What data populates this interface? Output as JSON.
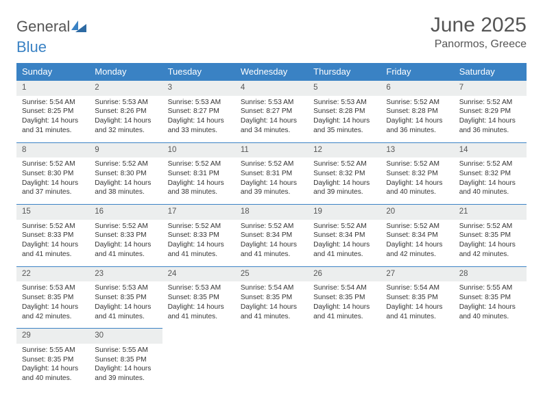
{
  "brand": {
    "word1": "General",
    "word2": "Blue"
  },
  "title": "June 2025",
  "location": "Panormos, Greece",
  "colors": {
    "header_bg": "#3a82c4",
    "header_text": "#ffffff",
    "daynum_bg": "#eceeee",
    "daynum_border": "#3a82c4",
    "body_text": "#333333",
    "title_text": "#555555"
  },
  "weekdays": [
    "Sunday",
    "Monday",
    "Tuesday",
    "Wednesday",
    "Thursday",
    "Friday",
    "Saturday"
  ],
  "weeks": [
    [
      {
        "n": "1",
        "sr": "5:54 AM",
        "ss": "8:25 PM",
        "dl": "14 hours and 31 minutes."
      },
      {
        "n": "2",
        "sr": "5:53 AM",
        "ss": "8:26 PM",
        "dl": "14 hours and 32 minutes."
      },
      {
        "n": "3",
        "sr": "5:53 AM",
        "ss": "8:27 PM",
        "dl": "14 hours and 33 minutes."
      },
      {
        "n": "4",
        "sr": "5:53 AM",
        "ss": "8:27 PM",
        "dl": "14 hours and 34 minutes."
      },
      {
        "n": "5",
        "sr": "5:53 AM",
        "ss": "8:28 PM",
        "dl": "14 hours and 35 minutes."
      },
      {
        "n": "6",
        "sr": "5:52 AM",
        "ss": "8:28 PM",
        "dl": "14 hours and 36 minutes."
      },
      {
        "n": "7",
        "sr": "5:52 AM",
        "ss": "8:29 PM",
        "dl": "14 hours and 36 minutes."
      }
    ],
    [
      {
        "n": "8",
        "sr": "5:52 AM",
        "ss": "8:30 PM",
        "dl": "14 hours and 37 minutes."
      },
      {
        "n": "9",
        "sr": "5:52 AM",
        "ss": "8:30 PM",
        "dl": "14 hours and 38 minutes."
      },
      {
        "n": "10",
        "sr": "5:52 AM",
        "ss": "8:31 PM",
        "dl": "14 hours and 38 minutes."
      },
      {
        "n": "11",
        "sr": "5:52 AM",
        "ss": "8:31 PM",
        "dl": "14 hours and 39 minutes."
      },
      {
        "n": "12",
        "sr": "5:52 AM",
        "ss": "8:32 PM",
        "dl": "14 hours and 39 minutes."
      },
      {
        "n": "13",
        "sr": "5:52 AM",
        "ss": "8:32 PM",
        "dl": "14 hours and 40 minutes."
      },
      {
        "n": "14",
        "sr": "5:52 AM",
        "ss": "8:32 PM",
        "dl": "14 hours and 40 minutes."
      }
    ],
    [
      {
        "n": "15",
        "sr": "5:52 AM",
        "ss": "8:33 PM",
        "dl": "14 hours and 41 minutes."
      },
      {
        "n": "16",
        "sr": "5:52 AM",
        "ss": "8:33 PM",
        "dl": "14 hours and 41 minutes."
      },
      {
        "n": "17",
        "sr": "5:52 AM",
        "ss": "8:33 PM",
        "dl": "14 hours and 41 minutes."
      },
      {
        "n": "18",
        "sr": "5:52 AM",
        "ss": "8:34 PM",
        "dl": "14 hours and 41 minutes."
      },
      {
        "n": "19",
        "sr": "5:52 AM",
        "ss": "8:34 PM",
        "dl": "14 hours and 41 minutes."
      },
      {
        "n": "20",
        "sr": "5:52 AM",
        "ss": "8:34 PM",
        "dl": "14 hours and 42 minutes."
      },
      {
        "n": "21",
        "sr": "5:52 AM",
        "ss": "8:35 PM",
        "dl": "14 hours and 42 minutes."
      }
    ],
    [
      {
        "n": "22",
        "sr": "5:53 AM",
        "ss": "8:35 PM",
        "dl": "14 hours and 42 minutes."
      },
      {
        "n": "23",
        "sr": "5:53 AM",
        "ss": "8:35 PM",
        "dl": "14 hours and 41 minutes."
      },
      {
        "n": "24",
        "sr": "5:53 AM",
        "ss": "8:35 PM",
        "dl": "14 hours and 41 minutes."
      },
      {
        "n": "25",
        "sr": "5:54 AM",
        "ss": "8:35 PM",
        "dl": "14 hours and 41 minutes."
      },
      {
        "n": "26",
        "sr": "5:54 AM",
        "ss": "8:35 PM",
        "dl": "14 hours and 41 minutes."
      },
      {
        "n": "27",
        "sr": "5:54 AM",
        "ss": "8:35 PM",
        "dl": "14 hours and 41 minutes."
      },
      {
        "n": "28",
        "sr": "5:55 AM",
        "ss": "8:35 PM",
        "dl": "14 hours and 40 minutes."
      }
    ],
    [
      {
        "n": "29",
        "sr": "5:55 AM",
        "ss": "8:35 PM",
        "dl": "14 hours and 40 minutes."
      },
      {
        "n": "30",
        "sr": "5:55 AM",
        "ss": "8:35 PM",
        "dl": "14 hours and 39 minutes."
      },
      null,
      null,
      null,
      null,
      null
    ]
  ],
  "labels": {
    "sunrise": "Sunrise: ",
    "sunset": "Sunset: ",
    "daylight": "Daylight: "
  }
}
